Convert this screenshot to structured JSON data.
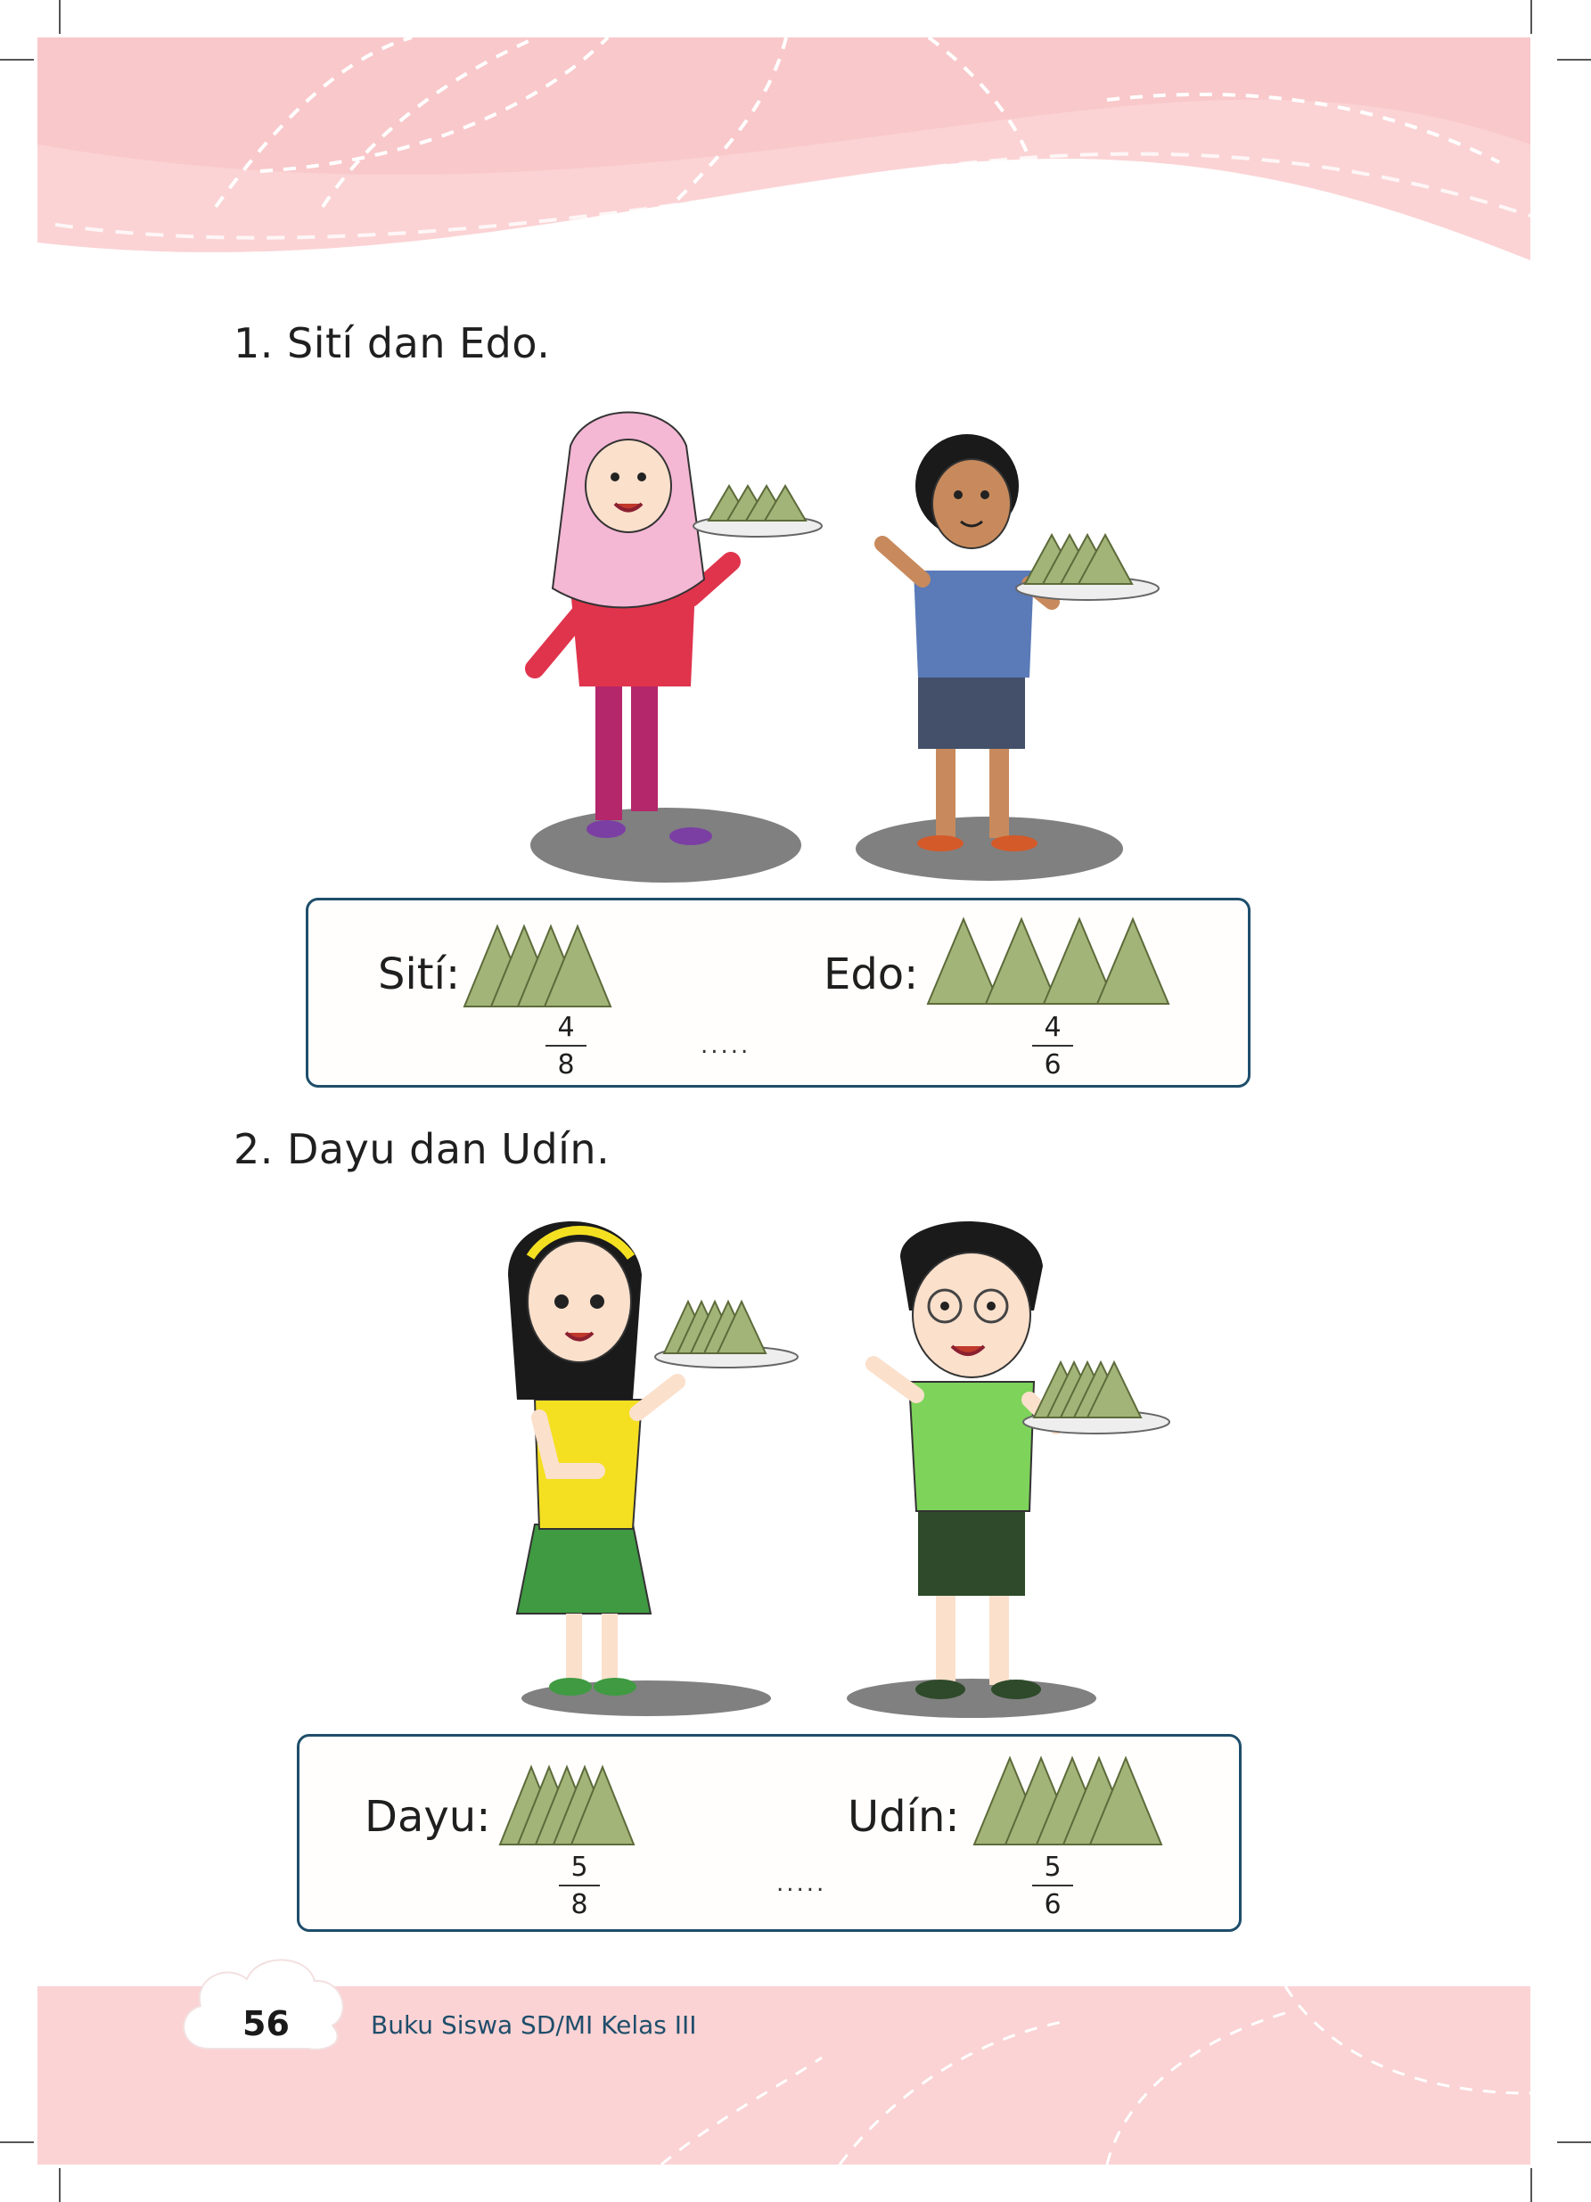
{
  "colors": {
    "accent_pink": "#fbd3d4",
    "box_border": "#1f4e6b",
    "ketupat_green": "#a3b479"
  },
  "questions": [
    {
      "title": "1. Sití dan Edo.",
      "left": {
        "name": "Sití:",
        "numerator": "4",
        "denominator": "8",
        "pieces": 4
      },
      "right": {
        "name": "Edo:",
        "numerator": "4",
        "denominator": "6",
        "pieces": 4
      },
      "blank": "....."
    },
    {
      "title": "2. Dayu dan Udín.",
      "left": {
        "name": "Dayu:",
        "numerator": "5",
        "denominator": "8",
        "pieces": 5
      },
      "right": {
        "name": "Udín:",
        "numerator": "5",
        "denominator": "6",
        "pieces": 5
      },
      "blank": "....."
    }
  ],
  "footer": {
    "page_number": "56",
    "book_title": "Buku Siswa SD/MI Kelas III"
  }
}
